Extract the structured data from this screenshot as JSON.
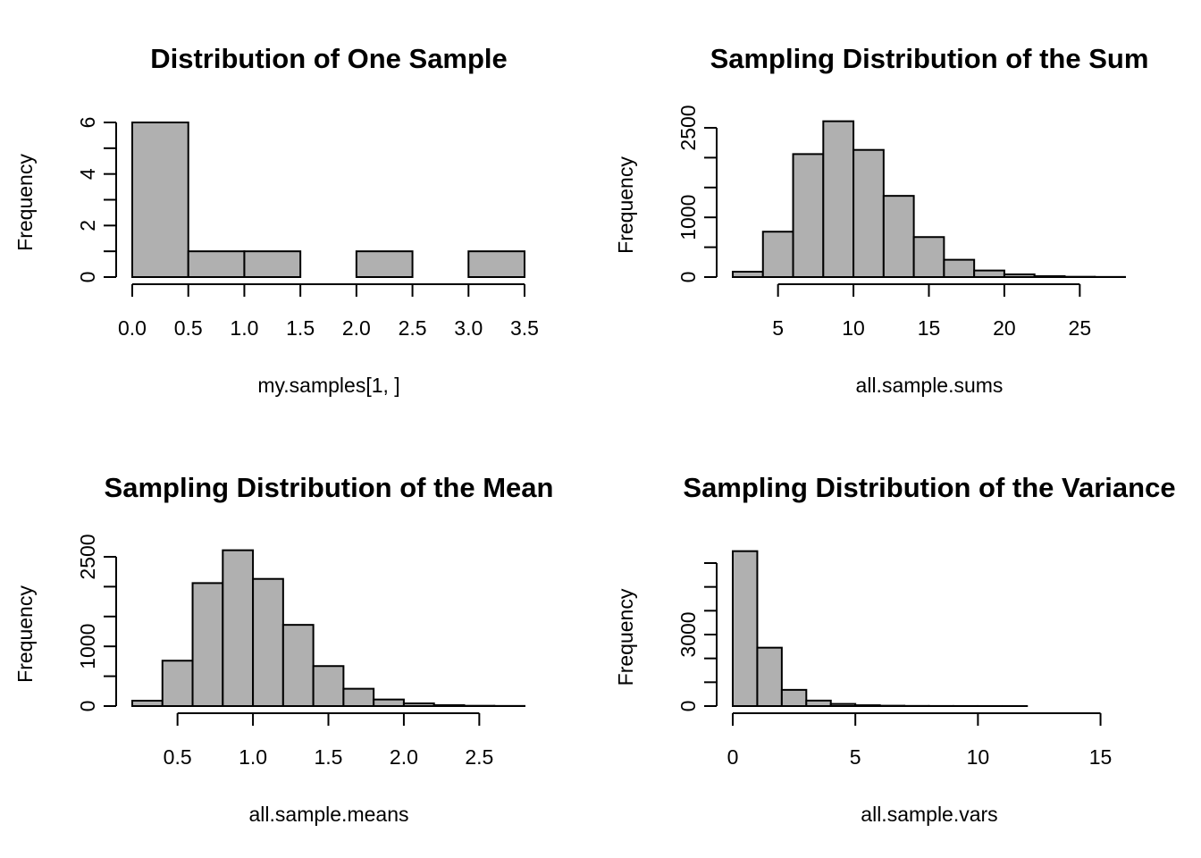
{
  "colors": {
    "bar_fill": "#b0b0b0",
    "bar_stroke": "#000000",
    "background": "#ffffff"
  },
  "chart_data": [
    {
      "type": "bar",
      "title": "Distribution of One Sample",
      "xlabel": "my.samples[1, ]",
      "ylabel": "Frequency",
      "bins": [
        [
          0.0,
          0.5
        ],
        [
          0.5,
          1.0
        ],
        [
          1.0,
          1.5
        ],
        [
          1.5,
          2.0
        ],
        [
          2.0,
          2.5
        ],
        [
          2.5,
          3.0
        ],
        [
          3.0,
          3.5
        ]
      ],
      "values": [
        6,
        1,
        1,
        0,
        1,
        0,
        1
      ],
      "xlim": [
        0.0,
        3.5
      ],
      "ylim": [
        0,
        6
      ],
      "xticks": [
        0.0,
        0.5,
        1.0,
        1.5,
        2.0,
        2.5,
        3.0,
        3.5
      ],
      "xtick_labels": [
        "0.0",
        "0.5",
        "1.0",
        "1.5",
        "2.0",
        "2.5",
        "3.0",
        "3.5"
      ],
      "yticks": [
        0,
        1,
        2,
        3,
        4,
        5,
        6
      ],
      "ytick_labels": [
        "0",
        "",
        "2",
        "",
        "4",
        "",
        "6"
      ],
      "grid": false
    },
    {
      "type": "bar",
      "title": "Sampling Distribution of the Sum",
      "xlabel": "all.sample.sums",
      "ylabel": "Frequency",
      "bins": [
        [
          2,
          4
        ],
        [
          4,
          6
        ],
        [
          6,
          8
        ],
        [
          8,
          10
        ],
        [
          10,
          12
        ],
        [
          12,
          14
        ],
        [
          14,
          16
        ],
        [
          16,
          18
        ],
        [
          18,
          20
        ],
        [
          20,
          22
        ],
        [
          22,
          24
        ],
        [
          24,
          26
        ],
        [
          26,
          28
        ]
      ],
      "values": [
        90,
        760,
        2060,
        2610,
        2130,
        1360,
        670,
        290,
        110,
        45,
        15,
        5,
        2
      ],
      "xlim": [
        2,
        28
      ],
      "ylim": [
        0,
        2500
      ],
      "xticks": [
        5,
        10,
        15,
        20,
        25
      ],
      "xtick_labels": [
        "5",
        "10",
        "15",
        "20",
        "25"
      ],
      "yticks": [
        0,
        500,
        1000,
        1500,
        2000,
        2500
      ],
      "ytick_labels": [
        "0",
        "",
        "1000",
        "",
        "",
        "2500"
      ],
      "grid": false
    },
    {
      "type": "bar",
      "title": "Sampling Distribution of the Mean",
      "xlabel": "all.sample.means",
      "ylabel": "Frequency",
      "bins": [
        [
          0.2,
          0.4
        ],
        [
          0.4,
          0.6
        ],
        [
          0.6,
          0.8
        ],
        [
          0.8,
          1.0
        ],
        [
          1.0,
          1.2
        ],
        [
          1.2,
          1.4
        ],
        [
          1.4,
          1.6
        ],
        [
          1.6,
          1.8
        ],
        [
          1.8,
          2.0
        ],
        [
          2.0,
          2.2
        ],
        [
          2.2,
          2.4
        ],
        [
          2.4,
          2.6
        ],
        [
          2.6,
          2.8
        ]
      ],
      "values": [
        90,
        760,
        2060,
        2610,
        2130,
        1360,
        670,
        290,
        110,
        45,
        15,
        5,
        2
      ],
      "xlim": [
        0.2,
        2.8
      ],
      "ylim": [
        0,
        2500
      ],
      "xticks": [
        0.5,
        1.0,
        1.5,
        2.0,
        2.5
      ],
      "xtick_labels": [
        "0.5",
        "1.0",
        "1.5",
        "2.0",
        "2.5"
      ],
      "yticks": [
        0,
        500,
        1000,
        1500,
        2000,
        2500
      ],
      "ytick_labels": [
        "0",
        "",
        "1000",
        "",
        "",
        "2500"
      ],
      "grid": false
    },
    {
      "type": "bar",
      "title": "Sampling Distribution of the Variance",
      "xlabel": "all.sample.vars",
      "ylabel": "Frequency",
      "bins": [
        [
          0,
          1
        ],
        [
          1,
          2
        ],
        [
          2,
          3
        ],
        [
          3,
          4
        ],
        [
          4,
          5
        ],
        [
          5,
          6
        ],
        [
          6,
          7
        ],
        [
          7,
          8
        ],
        [
          8,
          9
        ],
        [
          9,
          10
        ],
        [
          10,
          11
        ],
        [
          11,
          12
        ],
        [
          12,
          13
        ],
        [
          13,
          14
        ],
        [
          14,
          15
        ],
        [
          15,
          16
        ]
      ],
      "values": [
        6500,
        2450,
        680,
        230,
        90,
        35,
        15,
        6,
        3,
        2,
        1,
        1,
        0,
        0,
        0,
        0
      ],
      "xlim": [
        0,
        16
      ],
      "ylim": [
        0,
        6000
      ],
      "xticks": [
        0,
        5,
        10,
        15
      ],
      "xtick_labels": [
        "0",
        "5",
        "10",
        "15"
      ],
      "yticks": [
        0,
        1000,
        2000,
        3000,
        4000,
        5000,
        6000
      ],
      "ytick_labels": [
        "0",
        "",
        "",
        "3000",
        "",
        "",
        ""
      ],
      "grid": false
    }
  ]
}
